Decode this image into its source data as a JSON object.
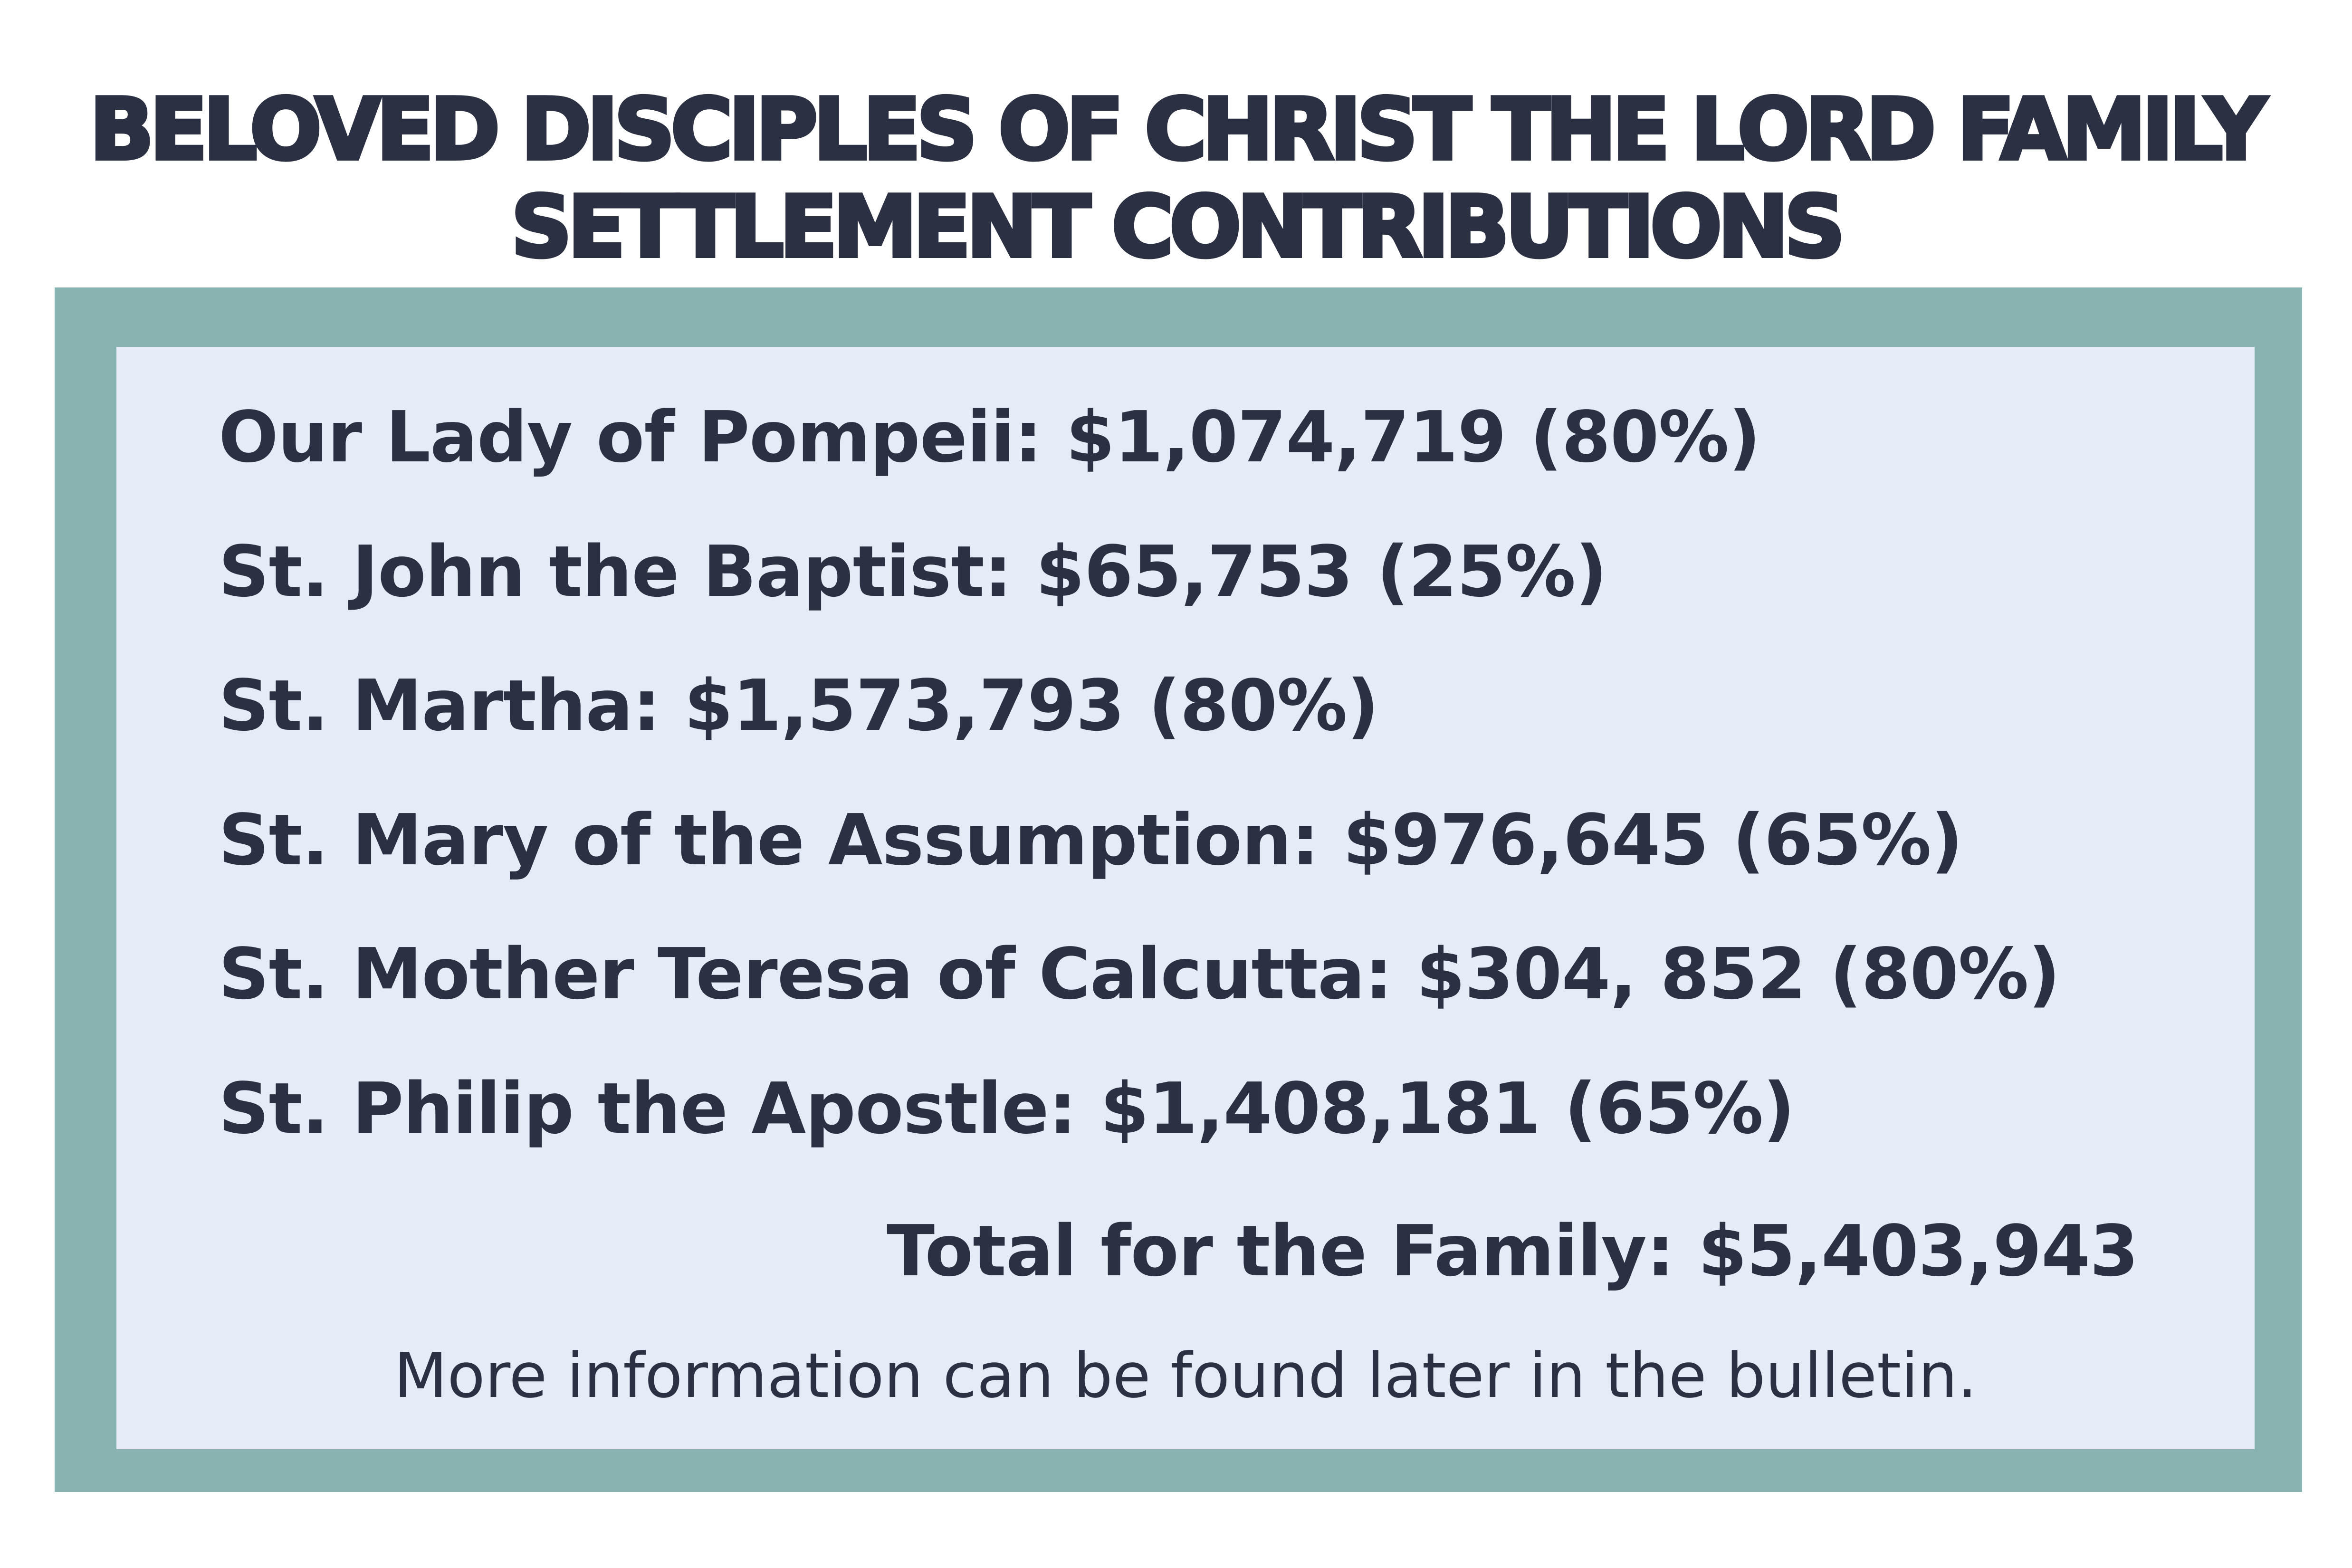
{
  "title": {
    "line1": "BELOVED DISCIPLES OF CHRIST THE LORD FAMILY",
    "line2": "SETTLEMENT CONTRIBUTIONS"
  },
  "contributions": [
    {
      "text": "Our Lady of Pompeii: $1,074,719 (80%)"
    },
    {
      "text": "St. John the Baptist: $65,753 (25%)"
    },
    {
      "text": "St. Martha: $1,573,793 (80%)"
    },
    {
      "text": "St. Mary of the Assumption: $976,645 (65%)"
    },
    {
      "text": "St. Mother Teresa of Calcutta: $304, 852 (80%)"
    },
    {
      "text": "St. Philip the Apostle: $1,408,181 (65%)"
    }
  ],
  "total": "Total for the Family: $5,403,943",
  "note": "More information can be found later in the bulletin.",
  "colors": {
    "text": "#2b3142",
    "frame": "#87b2b0",
    "panel": "#e5ebf7",
    "background": "#ffffff"
  }
}
